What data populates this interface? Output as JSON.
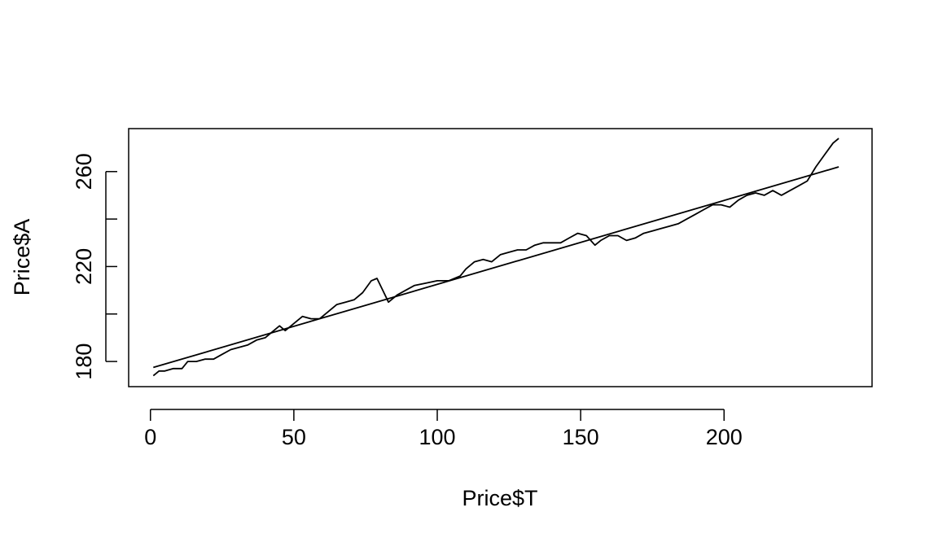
{
  "chart_data": {
    "type": "line",
    "title": "",
    "xlabel": "Price$T",
    "ylabel": "Price$A",
    "xlim": [
      -7.6,
      251.6
    ],
    "ylim": [
      169.4,
      278.1
    ],
    "x_ticks": [
      0,
      50,
      100,
      150,
      200
    ],
    "y_ticks": [
      180,
      200,
      220,
      240,
      260
    ],
    "y_tick_labels": [
      "180",
      "",
      "220",
      "",
      "260"
    ],
    "grid": false,
    "legend": "none",
    "line_color": "#000000",
    "series": [
      {
        "kind": "observed",
        "x": [
          1,
          3,
          5,
          8,
          11,
          13,
          16,
          19,
          22,
          25,
          28,
          31,
          34,
          37,
          40,
          43,
          45,
          47,
          50,
          53,
          56,
          59,
          62,
          65,
          68,
          71,
          74,
          77,
          79,
          81,
          83,
          86,
          89,
          92,
          96,
          100,
          104,
          108,
          110,
          113,
          116,
          119,
          122,
          125,
          128,
          131,
          134,
          137,
          140,
          143,
          146,
          149,
          152,
          155,
          157,
          160,
          163,
          166,
          169,
          172,
          175,
          178,
          181,
          184,
          187,
          190,
          193,
          196,
          199,
          202,
          205,
          208,
          211,
          214,
          217,
          220,
          223,
          226,
          229,
          232,
          235,
          238,
          240
        ],
        "y": [
          174,
          176,
          176,
          177,
          177,
          180,
          180,
          181,
          181,
          183,
          185,
          186,
          187,
          189,
          190,
          193,
          195,
          193,
          196,
          199,
          198,
          198,
          201,
          204,
          205,
          206,
          209,
          214,
          215,
          210,
          205,
          208,
          210,
          212,
          213,
          214,
          214,
          216,
          219,
          222,
          223,
          222,
          225,
          226,
          227,
          227,
          229,
          230,
          230,
          230,
          232,
          234,
          233,
          229,
          231,
          233,
          233,
          231,
          232,
          234,
          235,
          236,
          237,
          238,
          240,
          242,
          244,
          246,
          246,
          245,
          248,
          250,
          251,
          250,
          252,
          250,
          252,
          254,
          256,
          262,
          267,
          272,
          274
        ]
      },
      {
        "kind": "fitted",
        "x": [
          1,
          240
        ],
        "y": [
          177.5,
          262
        ]
      }
    ]
  }
}
